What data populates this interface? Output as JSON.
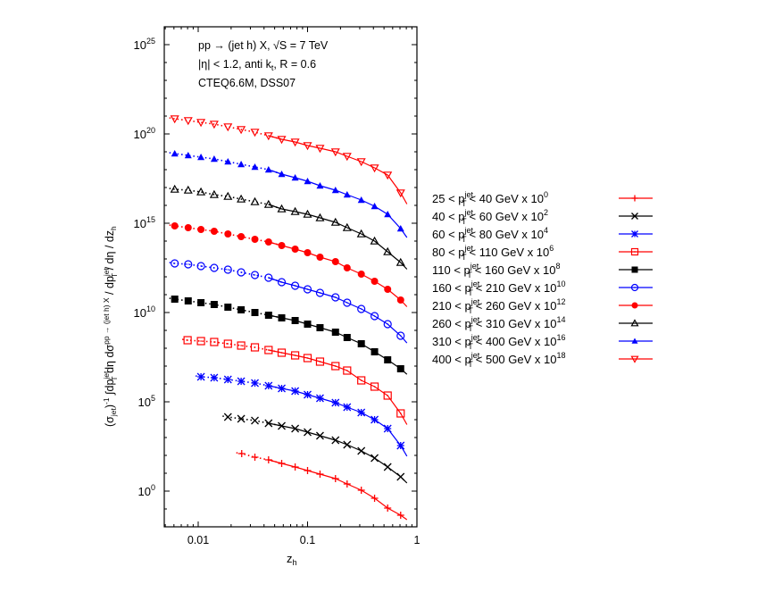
{
  "chart_data": {
    "type": "scatter",
    "title": "",
    "annotations": [
      "pp → (jet h) X, √S = 7 TeV",
      "|η| < 1.2, anti k_t, R = 0.6",
      "CTEQ6.6M, DSS07"
    ],
    "xlabel": "z_h",
    "ylabel": "(σ_jet)^-1 ∫ dp_T^jet dη dσ^{pp → (jet h) X} / dp_T^jet / dη / dz_h",
    "xscale": "log",
    "yscale": "log",
    "xlim": [
      0.005,
      1
    ],
    "ylim": [
      0.01,
      1e+26
    ],
    "xticks": [
      {
        "v": 0.01,
        "label": "0.01"
      },
      {
        "v": 0.1,
        "label": "0.1"
      },
      {
        "v": 1,
        "label": "1"
      }
    ],
    "yticks": [
      {
        "exp": 0
      },
      {
        "exp": 5
      },
      {
        "exp": 10
      },
      {
        "exp": 15
      },
      {
        "exp": 20
      },
      {
        "exp": 25
      }
    ],
    "grid": false,
    "legend_position": "right-outside",
    "note": "Values given as log10(y); markers = data, lines = theory curves (dotted at low z_h, solid at high z_h)",
    "series": [
      {
        "name": "25 < p_T^jet < 40 GeV x 10^0",
        "range": "25 < p",
        "gev": "< 40 GeV x 10",
        "scale_exp": "0",
        "color": "#ff0000",
        "marker": "plus",
        "z": [
          0.025,
          0.033,
          0.044,
          0.058,
          0.077,
          0.1,
          0.13,
          0.18,
          0.23,
          0.31,
          0.41,
          0.54,
          0.71
        ],
        "log10_y": [
          2.1,
          1.9,
          1.75,
          1.55,
          1.35,
          1.15,
          0.95,
          0.7,
          0.4,
          0.05,
          -0.4,
          -0.95,
          -1.35
        ]
      },
      {
        "name": "40 < p_T^jet < 60 GeV x 10^2",
        "range": "40 < p",
        "gev": "< 60 GeV x 10",
        "scale_exp": "2",
        "color": "#000000",
        "marker": "cross",
        "z": [
          0.0187,
          0.0247,
          0.033,
          0.044,
          0.058,
          0.077,
          0.1,
          0.13,
          0.18,
          0.23,
          0.31,
          0.41,
          0.54,
          0.71
        ],
        "log10_y": [
          4.15,
          4.05,
          3.95,
          3.8,
          3.65,
          3.5,
          3.3,
          3.1,
          2.85,
          2.6,
          2.25,
          1.85,
          1.35,
          0.8
        ]
      },
      {
        "name": "60 < p_T^jet < 80 GeV x 10^4",
        "range": "60 < p",
        "gev": "< 80 GeV x 10",
        "scale_exp": "4",
        "color": "#0000ff",
        "marker": "star",
        "z": [
          0.0106,
          0.014,
          0.0187,
          0.0247,
          0.033,
          0.044,
          0.058,
          0.077,
          0.1,
          0.13,
          0.18,
          0.23,
          0.31,
          0.41,
          0.54,
          0.71
        ],
        "log10_y": [
          6.4,
          6.35,
          6.25,
          6.15,
          6.05,
          5.9,
          5.75,
          5.6,
          5.4,
          5.2,
          4.95,
          4.7,
          4.4,
          4.0,
          3.5,
          2.55
        ]
      },
      {
        "name": "80 < p_T^jet < 110 GeV x 10^6",
        "range": "80 < p",
        "gev": "< 110 GeV x 10",
        "scale_exp": "6",
        "color": "#ff0000",
        "marker": "open-square",
        "z": [
          0.008,
          0.0106,
          0.014,
          0.0187,
          0.0247,
          0.033,
          0.044,
          0.058,
          0.077,
          0.1,
          0.13,
          0.18,
          0.23,
          0.31,
          0.41,
          0.54,
          0.71
        ],
        "log10_y": [
          8.45,
          8.4,
          8.35,
          8.25,
          8.15,
          8.05,
          7.9,
          7.75,
          7.6,
          7.45,
          7.25,
          7.0,
          6.75,
          6.2,
          5.85,
          5.35,
          4.35
        ]
      },
      {
        "name": "110 < p_T^jet < 160 GeV x 10^8",
        "range": "110 < p",
        "gev": "< 160 GeV x 10",
        "scale_exp": "8",
        "color": "#000000",
        "marker": "filled-square",
        "z": [
          0.0061,
          0.0081,
          0.0106,
          0.014,
          0.0187,
          0.0247,
          0.033,
          0.044,
          0.058,
          0.077,
          0.1,
          0.13,
          0.18,
          0.23,
          0.31,
          0.41,
          0.54,
          0.71
        ],
        "log10_y": [
          10.75,
          10.65,
          10.55,
          10.45,
          10.3,
          10.15,
          10.0,
          9.85,
          9.7,
          9.55,
          9.35,
          9.15,
          8.9,
          8.6,
          8.25,
          7.8,
          7.35,
          6.85
        ]
      },
      {
        "name": "160 < p_T^jet < 210 GeV x 10^10",
        "range": "160 < p",
        "gev": "< 210 GeV x 10",
        "scale_exp": "10",
        "color": "#0000ff",
        "marker": "open-circle",
        "z": [
          0.0061,
          0.0081,
          0.0106,
          0.014,
          0.0187,
          0.0247,
          0.033,
          0.044,
          0.058,
          0.077,
          0.1,
          0.13,
          0.18,
          0.23,
          0.31,
          0.41,
          0.54,
          0.71
        ],
        "log10_y": [
          12.75,
          12.7,
          12.6,
          12.5,
          12.4,
          12.25,
          12.1,
          11.95,
          11.7,
          11.5,
          11.3,
          11.1,
          10.85,
          10.55,
          10.2,
          9.8,
          9.35,
          8.7
        ]
      },
      {
        "name": "210 < p_T^jet < 260 GeV x 10^12",
        "range": "210 < p",
        "gev": "< 260 GeV x 10",
        "scale_exp": "12",
        "color": "#ff0000",
        "marker": "filled-circle",
        "z": [
          0.0061,
          0.0081,
          0.0106,
          0.014,
          0.0187,
          0.0247,
          0.033,
          0.044,
          0.058,
          0.077,
          0.1,
          0.13,
          0.18,
          0.23,
          0.31,
          0.41,
          0.54,
          0.71
        ],
        "log10_y": [
          14.85,
          14.75,
          14.65,
          14.55,
          14.4,
          14.25,
          14.1,
          13.95,
          13.75,
          13.55,
          13.35,
          13.1,
          12.85,
          12.5,
          12.15,
          11.75,
          11.3,
          10.7
        ]
      },
      {
        "name": "260 < p_T^jet < 310 GeV x 10^14",
        "range": "260 < p",
        "gev": "< 310 GeV x 10",
        "scale_exp": "14",
        "color": "#000000",
        "marker": "open-triangle-up",
        "z": [
          0.0061,
          0.0081,
          0.0106,
          0.014,
          0.0187,
          0.0247,
          0.033,
          0.044,
          0.058,
          0.077,
          0.1,
          0.13,
          0.18,
          0.23,
          0.31,
          0.41,
          0.54,
          0.71
        ],
        "log10_y": [
          16.9,
          16.85,
          16.75,
          16.6,
          16.5,
          16.35,
          16.2,
          16.05,
          15.8,
          15.65,
          15.5,
          15.3,
          15.05,
          14.75,
          14.4,
          14.0,
          13.4,
          12.8
        ]
      },
      {
        "name": "310 < p_T^jet < 400 GeV x 10^16",
        "range": "310 < p",
        "gev": "< 400 GeV x 10",
        "scale_exp": "16",
        "color": "#0000ff",
        "marker": "filled-triangle-up",
        "z": [
          0.0061,
          0.0081,
          0.0106,
          0.014,
          0.0187,
          0.0247,
          0.033,
          0.044,
          0.058,
          0.077,
          0.1,
          0.13,
          0.18,
          0.23,
          0.31,
          0.41,
          0.54,
          0.71
        ],
        "log10_y": [
          18.9,
          18.8,
          18.7,
          18.6,
          18.45,
          18.3,
          18.15,
          18.0,
          17.75,
          17.55,
          17.35,
          17.1,
          16.85,
          16.6,
          16.3,
          15.95,
          15.5,
          14.7
        ]
      },
      {
        "name": "400 < p_T^jet < 500 GeV x 10^18",
        "range": "400 < p",
        "gev": "< 500 GeV x 10",
        "scale_exp": "18",
        "color": "#ff0000",
        "marker": "open-triangle-down",
        "z": [
          0.0061,
          0.0081,
          0.0106,
          0.014,
          0.0187,
          0.0247,
          0.033,
          0.044,
          0.058,
          0.077,
          0.1,
          0.13,
          0.18,
          0.23,
          0.31,
          0.41,
          0.54,
          0.71
        ],
        "log10_y": [
          20.85,
          20.75,
          20.65,
          20.55,
          20.4,
          20.25,
          20.1,
          19.9,
          19.7,
          19.55,
          19.35,
          19.2,
          19.0,
          18.75,
          18.45,
          18.1,
          17.7,
          16.7
        ]
      }
    ]
  }
}
